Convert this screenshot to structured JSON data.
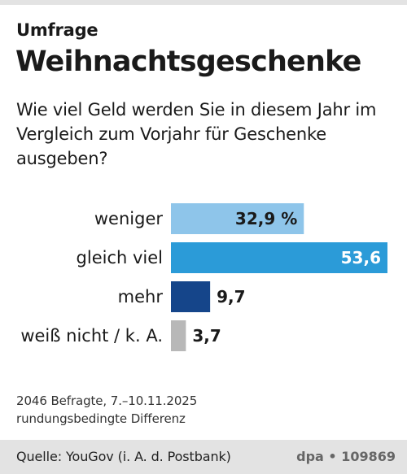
{
  "header": {
    "kicker": "Umfrage",
    "title": "Weihnachtsgeschenke",
    "question": "Wie viel Geld werden Sie in diesem Jahr im Vergleich zum Vorjahr für Geschenke ausgeben?"
  },
  "chart_data": {
    "type": "bar",
    "orientation": "horizontal",
    "unit": "%",
    "categories": [
      "weniger",
      "gleich viel",
      "mehr",
      "weiß nicht / k. A."
    ],
    "values": [
      32.9,
      53.6,
      9.7,
      3.7
    ],
    "value_labels": [
      "32,9 %",
      "53,6",
      "9,7",
      "3,7"
    ],
    "colors": [
      "#8ec5ea",
      "#2b9bd8",
      "#15458a",
      "#b8b8b8"
    ],
    "label_colors": [
      "#1a1a1a",
      "#ffffff",
      "#1a1a1a",
      "#1a1a1a"
    ],
    "label_inside": [
      true,
      true,
      false,
      false
    ],
    "xlim": [
      0,
      53.6
    ],
    "grid": false,
    "legend": "none"
  },
  "footnote": {
    "line1": "2046 Befragte, 7.–10.11.2025",
    "line2": "rundungsbedingte Differenz"
  },
  "footer": {
    "source": "Quelle: YouGov (i. A. d. Postbank)",
    "credit": "dpa • 109869"
  }
}
